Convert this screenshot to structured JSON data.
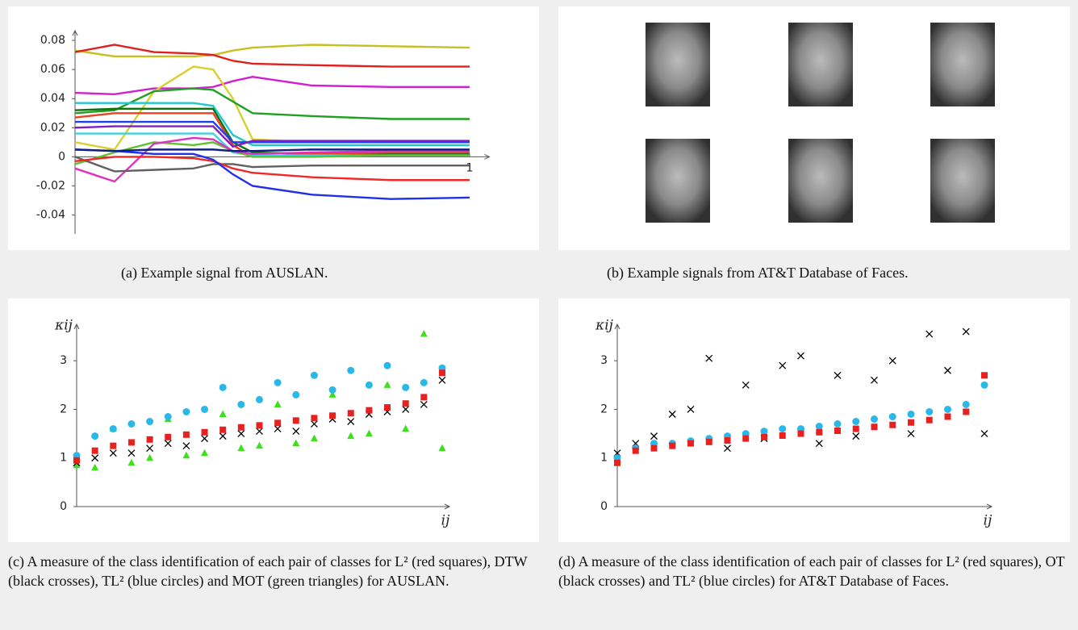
{
  "chart_data": [
    {
      "type": "line",
      "caption": "(a) Example signal from AUSLAN.",
      "x": [
        0,
        0.1,
        0.2,
        0.3,
        0.35,
        0.4,
        0.45,
        0.6,
        0.8,
        1
      ],
      "xlim": [
        0,
        1.05
      ],
      "xticks": [
        1
      ],
      "ylim": [
        -0.053,
        0.0867
      ],
      "yticks": [
        -0.04,
        -0.02,
        0,
        0.02,
        0.04,
        0.06,
        0.08
      ],
      "series": [
        {
          "color": "#c8c020",
          "values": [
            0.073,
            0.069,
            0.069,
            0.069,
            0.07,
            0.073,
            0.075,
            0.077,
            0.076,
            0.075
          ]
        },
        {
          "color": "#e02020",
          "values": [
            0.072,
            0.077,
            0.072,
            0.071,
            0.07,
            0.066,
            0.064,
            0.063,
            0.062,
            0.062
          ]
        },
        {
          "color": "#d020d0",
          "values": [
            0.044,
            0.043,
            0.047,
            0.047,
            0.048,
            0.052,
            0.055,
            0.049,
            0.048,
            0.048
          ]
        },
        {
          "color": "#d8d030",
          "values": [
            0.01,
            0.005,
            0.045,
            0.062,
            0.06,
            0.04,
            0.012,
            0.01,
            0.01,
            0.01
          ]
        },
        {
          "color": "#20a020",
          "values": [
            0.03,
            0.032,
            0.045,
            0.047,
            0.046,
            0.038,
            0.03,
            0.028,
            0.026,
            0.026
          ]
        },
        {
          "color": "#20c8d0",
          "values": [
            0.037,
            0.037,
            0.037,
            0.037,
            0.035,
            0.015,
            0.008,
            0.008,
            0.008,
            0.008
          ]
        },
        {
          "color": "#107010",
          "values": [
            0.032,
            0.033,
            0.033,
            0.033,
            0.033,
            0.01,
            0.003,
            0.002,
            0.002,
            0.002
          ]
        },
        {
          "color": "#f04020",
          "values": [
            0.027,
            0.03,
            0.03,
            0.03,
            0.03,
            0.008,
            0.0,
            0.002,
            0.003,
            0.003
          ]
        },
        {
          "color": "#2040f0",
          "values": [
            0.024,
            0.024,
            0.024,
            0.024,
            0.024,
            0.01,
            0.01,
            0.01,
            0.01,
            0.01
          ]
        },
        {
          "color": "#8020c0",
          "values": [
            0.02,
            0.021,
            0.021,
            0.021,
            0.021,
            0.007,
            0.011,
            0.011,
            0.011,
            0.011
          ]
        },
        {
          "color": "#40d0e0",
          "values": [
            0.016,
            0.016,
            0.016,
            0.016,
            0.016,
            0.003,
            0.001,
            0.001,
            0.001,
            0.001
          ]
        },
        {
          "color": "#60c030",
          "values": [
            -0.005,
            0.003,
            0.01,
            0.008,
            0.01,
            0.004,
            0.0,
            0.0,
            0.001,
            0.001
          ]
        },
        {
          "color": "#e030c0",
          "values": [
            -0.008,
            -0.017,
            0.009,
            0.013,
            0.012,
            0.004,
            0.002,
            0.003,
            0.004,
            0.004
          ]
        },
        {
          "color": "#606060",
          "values": [
            0.0,
            -0.01,
            -0.009,
            -0.008,
            -0.005,
            -0.005,
            -0.007,
            -0.006,
            -0.006,
            -0.006
          ]
        },
        {
          "color": "#f02828",
          "values": [
            -0.003,
            0.0,
            0.0,
            -0.001,
            -0.003,
            -0.008,
            -0.011,
            -0.014,
            -0.016,
            -0.016
          ]
        },
        {
          "color": "#2030e8",
          "values": [
            0.005,
            0.004,
            0.002,
            0.002,
            -0.002,
            -0.012,
            -0.02,
            -0.026,
            -0.029,
            -0.028
          ]
        },
        {
          "color": "#102080",
          "values": [
            0.005,
            0.004,
            0.005,
            0.005,
            0.005,
            0.004,
            0.004,
            0.005,
            0.005,
            0.005
          ]
        }
      ]
    },
    {
      "type": "scatter",
      "caption": "(c) A measure of the class identification of each pair of classes for L² (red squares), DTW (black crosses), TL² (blue circles) and MOT (green triangles) for AUSLAN.",
      "x_label": "ij",
      "y_label": "κij",
      "x": [
        0,
        0.05,
        0.1,
        0.15,
        0.2,
        0.25,
        0.3,
        0.35,
        0.4,
        0.45,
        0.5,
        0.55,
        0.6,
        0.65,
        0.7,
        0.75,
        0.8,
        0.85,
        0.9,
        0.95,
        1
      ],
      "xlim": [
        0,
        1.02
      ],
      "ylim": [
        0,
        3.75
      ],
      "yticks": [
        0,
        1,
        2,
        3
      ],
      "series": [
        {
          "marker": "triangle",
          "color": "#3ee01e",
          "values": [
            0.85,
            0.8,
            1.6,
            0.9,
            1.0,
            1.8,
            1.05,
            1.1,
            1.9,
            1.2,
            1.25,
            2.1,
            1.3,
            1.4,
            2.3,
            1.45,
            1.5,
            2.5,
            1.6,
            3.55,
            1.2
          ]
        },
        {
          "marker": "cross",
          "color": "#000000",
          "values": [
            0.9,
            1.0,
            1.1,
            1.1,
            1.2,
            1.3,
            1.25,
            1.4,
            1.45,
            1.5,
            1.55,
            1.6,
            1.55,
            1.7,
            1.8,
            1.75,
            1.9,
            1.95,
            2.0,
            2.1,
            2.6
          ]
        },
        {
          "marker": "circle",
          "color": "#2ab8ea",
          "values": [
            1.05,
            1.45,
            1.6,
            1.7,
            1.75,
            1.85,
            1.95,
            2.0,
            2.45,
            2.1,
            2.2,
            2.55,
            2.3,
            2.7,
            2.4,
            2.8,
            2.5,
            2.9,
            2.45,
            2.55,
            2.85
          ]
        },
        {
          "marker": "square",
          "color": "#e82020",
          "values": [
            0.95,
            1.15,
            1.25,
            1.32,
            1.38,
            1.43,
            1.48,
            1.53,
            1.58,
            1.63,
            1.67,
            1.72,
            1.77,
            1.82,
            1.87,
            1.92,
            1.98,
            2.04,
            2.12,
            2.25,
            2.75
          ]
        }
      ]
    },
    {
      "type": "scatter",
      "caption": "(d) A measure of the class identification of each pair of classes for L² (red squares), OT (black crosses) and TL² (blue circles) for AT&T Database of Faces.",
      "x_label": "ij",
      "y_label": "κij",
      "x": [
        0,
        0.05,
        0.1,
        0.15,
        0.2,
        0.25,
        0.3,
        0.35,
        0.4,
        0.45,
        0.5,
        0.55,
        0.6,
        0.65,
        0.7,
        0.75,
        0.8,
        0.85,
        0.9,
        0.95,
        1
      ],
      "xlim": [
        0,
        1.02
      ],
      "ylim": [
        0,
        3.75
      ],
      "yticks": [
        0,
        1,
        2,
        3
      ],
      "series": [
        {
          "marker": "cross",
          "color": "#000000",
          "values": [
            1.1,
            1.3,
            1.45,
            1.9,
            2.0,
            3.05,
            1.2,
            2.5,
            1.4,
            2.9,
            3.1,
            1.3,
            2.7,
            1.45,
            2.6,
            3.0,
            1.5,
            3.55,
            2.8,
            3.6,
            1.5
          ]
        },
        {
          "marker": "circle",
          "color": "#2ab8ea",
          "values": [
            1.0,
            1.2,
            1.3,
            1.3,
            1.35,
            1.4,
            1.45,
            1.5,
            1.55,
            1.6,
            1.6,
            1.65,
            1.7,
            1.75,
            1.8,
            1.85,
            1.9,
            1.95,
            2.0,
            2.1,
            2.5
          ]
        },
        {
          "marker": "square",
          "color": "#e82020",
          "values": [
            0.9,
            1.15,
            1.2,
            1.25,
            1.3,
            1.33,
            1.36,
            1.4,
            1.43,
            1.46,
            1.5,
            1.53,
            1.56,
            1.6,
            1.64,
            1.68,
            1.73,
            1.78,
            1.85,
            1.95,
            2.7
          ]
        }
      ]
    }
  ],
  "faces_panel": {
    "caption": "(b) Example signals from AT&T Database of Faces."
  }
}
